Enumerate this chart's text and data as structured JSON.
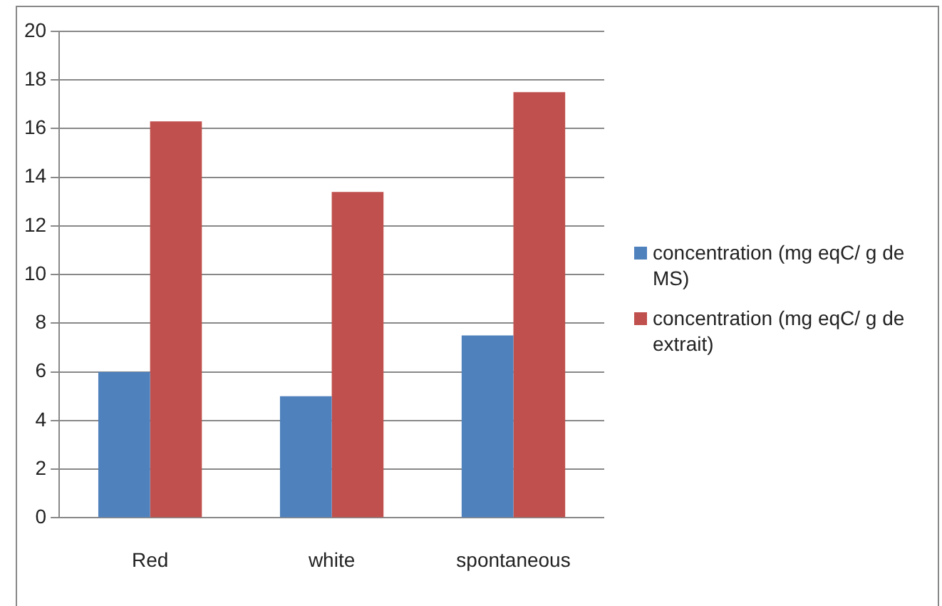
{
  "chart_data": {
    "type": "bar",
    "categories": [
      "Red",
      "white",
      "spontaneous"
    ],
    "series": [
      {
        "name": "concentration (mg eqC/ g de MS)",
        "color": "#4f81bd",
        "values": [
          6.0,
          5.0,
          7.5
        ]
      },
      {
        "name": "concentration (mg eqC/ g de extrait)",
        "color": "#c0504d",
        "values": [
          16.3,
          13.4,
          17.5
        ]
      }
    ],
    "ylim": [
      0,
      20
    ],
    "yticks": [
      0,
      2,
      4,
      6,
      8,
      10,
      12,
      14,
      16,
      18,
      20
    ],
    "grid": "y",
    "legend": "right"
  }
}
